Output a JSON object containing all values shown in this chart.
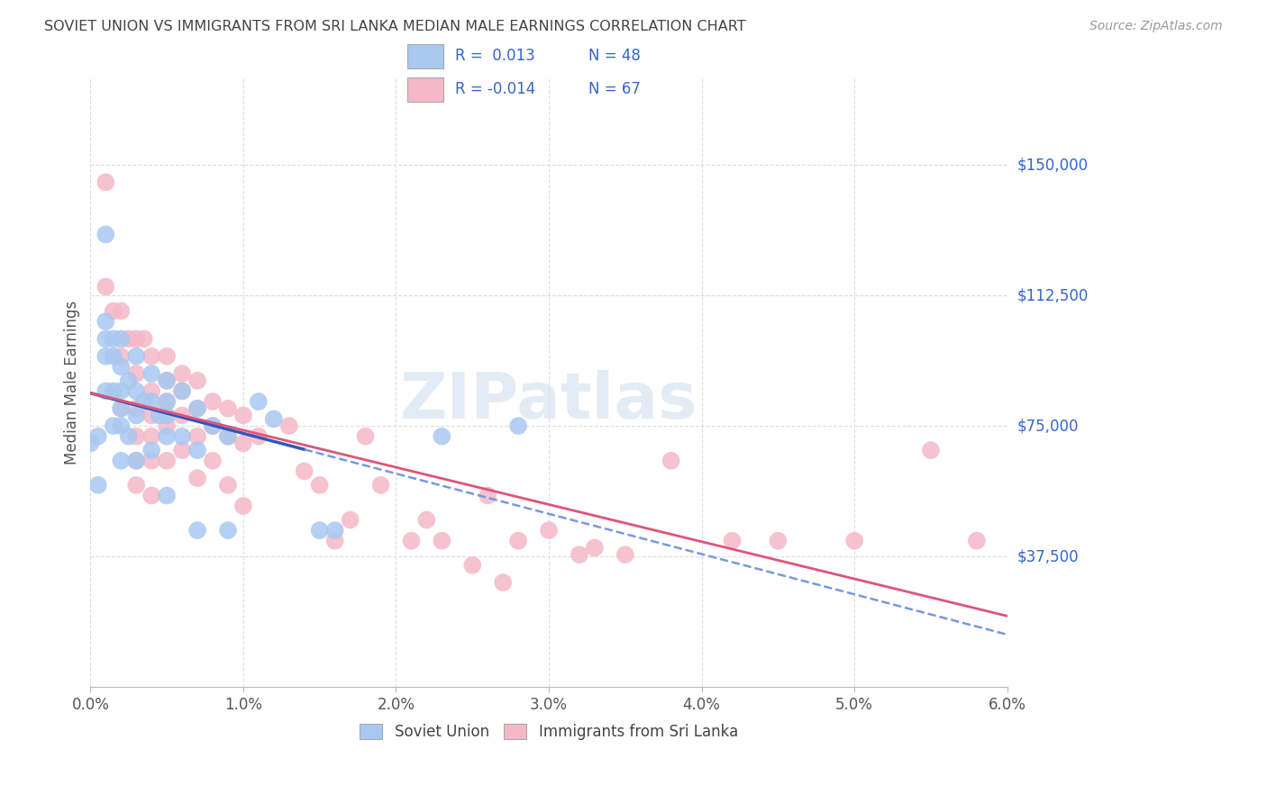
{
  "title": "SOVIET UNION VS IMMIGRANTS FROM SRI LANKA MEDIAN MALE EARNINGS CORRELATION CHART",
  "source": "Source: ZipAtlas.com",
  "ylabel": "Median Male Earnings",
  "xlim": [
    0.0,
    0.06
  ],
  "ylim": [
    0,
    175000
  ],
  "yticks": [
    0,
    37500,
    75000,
    112500,
    150000
  ],
  "ytick_labels": [
    "",
    "$37,500",
    "$75,000",
    "$112,500",
    "$150,000"
  ],
  "xticks": [
    0.0,
    0.01,
    0.02,
    0.03,
    0.04,
    0.05,
    0.06
  ],
  "watermark": "ZIPatlas",
  "blue_color": "#A8C8F0",
  "pink_color": "#F5B8C8",
  "line_blue_solid": "#3355BB",
  "line_blue_dash": "#7799DD",
  "line_pink": "#DD5577",
  "legend_text_color": "#3366CC",
  "title_color": "#444444",
  "grid_color": "#DDDDDD",
  "right_label_color": "#3366CC",
  "soviet_union_x": [
    0.001,
    0.0005,
    0.0005,
    0.001,
    0.001,
    0.001,
    0.001,
    0.0015,
    0.0015,
    0.0015,
    0.0015,
    0.002,
    0.002,
    0.002,
    0.002,
    0.002,
    0.002,
    0.0025,
    0.0025,
    0.003,
    0.003,
    0.003,
    0.003,
    0.0035,
    0.004,
    0.004,
    0.004,
    0.0045,
    0.005,
    0.005,
    0.005,
    0.005,
    0.005,
    0.006,
    0.006,
    0.007,
    0.007,
    0.007,
    0.008,
    0.009,
    0.009,
    0.011,
    0.012,
    0.015,
    0.016,
    0.023,
    0.028,
    0.0
  ],
  "soviet_union_y": [
    130000,
    72000,
    58000,
    105000,
    100000,
    95000,
    85000,
    100000,
    95000,
    85000,
    75000,
    100000,
    92000,
    85000,
    80000,
    75000,
    65000,
    88000,
    72000,
    95000,
    85000,
    78000,
    65000,
    82000,
    90000,
    82000,
    68000,
    78000,
    88000,
    82000,
    78000,
    72000,
    55000,
    85000,
    72000,
    80000,
    68000,
    45000,
    75000,
    72000,
    45000,
    82000,
    77000,
    45000,
    45000,
    72000,
    75000,
    70000
  ],
  "sri_lanka_x": [
    0.001,
    0.001,
    0.0015,
    0.002,
    0.002,
    0.002,
    0.0025,
    0.003,
    0.003,
    0.003,
    0.003,
    0.003,
    0.003,
    0.0035,
    0.004,
    0.004,
    0.004,
    0.004,
    0.004,
    0.004,
    0.005,
    0.005,
    0.005,
    0.005,
    0.005,
    0.006,
    0.006,
    0.006,
    0.006,
    0.007,
    0.007,
    0.007,
    0.007,
    0.008,
    0.008,
    0.008,
    0.009,
    0.009,
    0.009,
    0.01,
    0.01,
    0.01,
    0.011,
    0.013,
    0.014,
    0.015,
    0.016,
    0.017,
    0.018,
    0.019,
    0.021,
    0.022,
    0.023,
    0.025,
    0.026,
    0.027,
    0.028,
    0.03,
    0.032,
    0.033,
    0.035,
    0.038,
    0.042,
    0.045,
    0.05,
    0.055,
    0.058
  ],
  "sri_lanka_y": [
    145000,
    115000,
    108000,
    108000,
    95000,
    80000,
    100000,
    100000,
    90000,
    80000,
    72000,
    65000,
    58000,
    100000,
    95000,
    85000,
    78000,
    72000,
    65000,
    55000,
    95000,
    88000,
    82000,
    75000,
    65000,
    90000,
    85000,
    78000,
    68000,
    88000,
    80000,
    72000,
    60000,
    82000,
    75000,
    65000,
    80000,
    72000,
    58000,
    78000,
    70000,
    52000,
    72000,
    75000,
    62000,
    58000,
    42000,
    48000,
    72000,
    58000,
    42000,
    48000,
    42000,
    35000,
    55000,
    30000,
    42000,
    45000,
    38000,
    40000,
    38000,
    65000,
    42000,
    42000,
    42000,
    68000,
    42000
  ]
}
